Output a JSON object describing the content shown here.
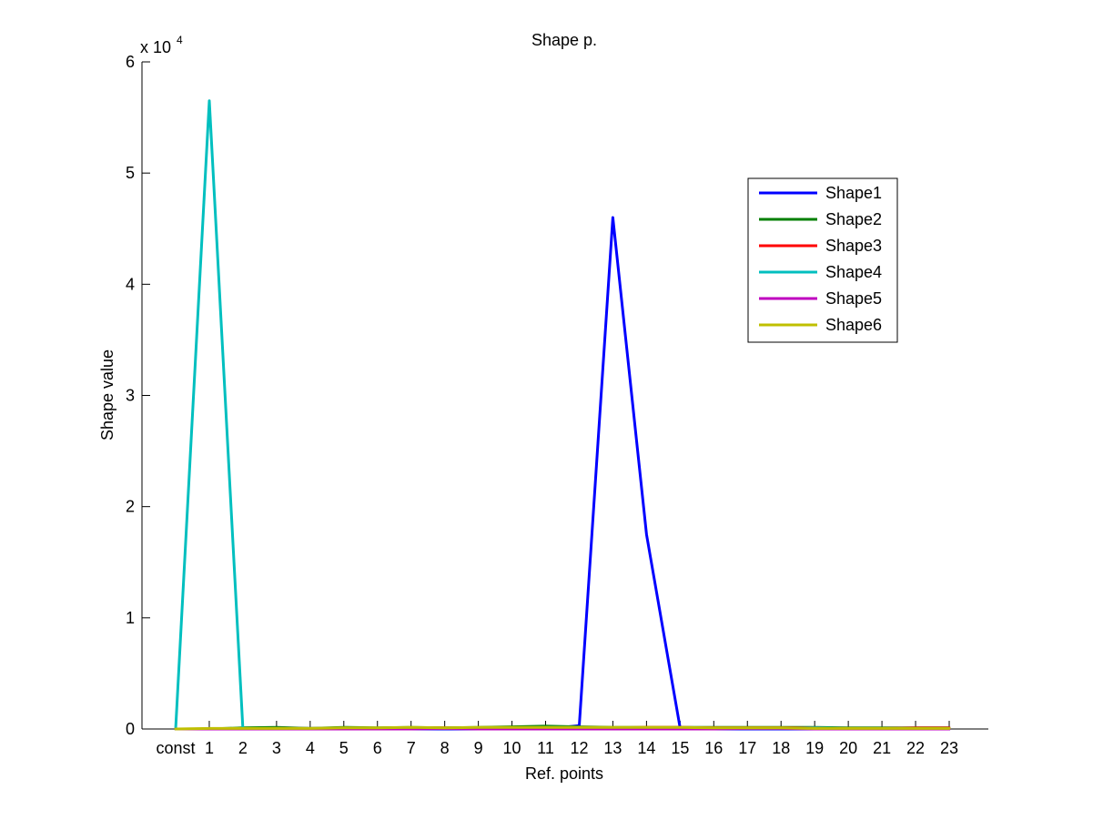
{
  "chart_data": {
    "type": "line",
    "title": "Shape p.",
    "xlabel": "Ref. points",
    "ylabel": "Shape value",
    "y_exponent_label": "x 10",
    "y_exponent_power": "4",
    "categories": [
      "const",
      "1",
      "2",
      "3",
      "4",
      "5",
      "6",
      "7",
      "8",
      "9",
      "10",
      "11",
      "12",
      "13",
      "14",
      "15",
      "16",
      "17",
      "18",
      "19",
      "20",
      "21",
      "22",
      "23"
    ],
    "ylim": [
      0,
      60000
    ],
    "yticks": [
      0,
      10000,
      20000,
      30000,
      40000,
      50000,
      60000
    ],
    "ytick_labels": [
      "0",
      "1",
      "2",
      "3",
      "4",
      "5",
      "6"
    ],
    "legend_position": "upper-right",
    "grid": false,
    "series": [
      {
        "name": "Shape1",
        "color": "#0000ff",
        "values": [
          0,
          0,
          0,
          0,
          0,
          0,
          0,
          0,
          0,
          0,
          0,
          0,
          300,
          46000,
          17500,
          100,
          0,
          0,
          0,
          0,
          0,
          0,
          0,
          0
        ]
      },
      {
        "name": "Shape2",
        "color": "#007f00",
        "values": [
          0,
          0,
          100,
          150,
          50,
          150,
          100,
          150,
          100,
          150,
          200,
          250,
          200,
          150,
          150,
          150,
          150,
          150,
          150,
          150,
          100,
          100,
          100,
          100
        ]
      },
      {
        "name": "Shape3",
        "color": "#ff0000",
        "values": [
          0,
          0,
          0,
          50,
          50,
          50,
          50,
          100,
          100,
          50,
          100,
          100,
          150,
          100,
          150,
          150,
          100,
          100,
          100,
          100,
          50,
          50,
          100,
          100
        ]
      },
      {
        "name": "Shape4",
        "color": "#00bfbf",
        "values": [
          0,
          56500,
          0,
          50,
          50,
          50,
          50,
          100,
          50,
          100,
          100,
          150,
          150,
          100,
          100,
          50,
          50,
          50,
          50,
          100,
          50,
          50,
          50,
          50
        ]
      },
      {
        "name": "Shape5",
        "color": "#bf00bf",
        "values": [
          0,
          0,
          0,
          0,
          0,
          0,
          0,
          0,
          50,
          0,
          0,
          0,
          0,
          0,
          0,
          0,
          0,
          50,
          50,
          0,
          0,
          0,
          0,
          0
        ]
      },
      {
        "name": "Shape6",
        "color": "#bfbf00",
        "values": [
          0,
          50,
          50,
          50,
          50,
          100,
          100,
          150,
          100,
          150,
          150,
          150,
          150,
          150,
          150,
          150,
          100,
          100,
          100,
          50,
          50,
          50,
          50,
          50
        ]
      }
    ]
  }
}
